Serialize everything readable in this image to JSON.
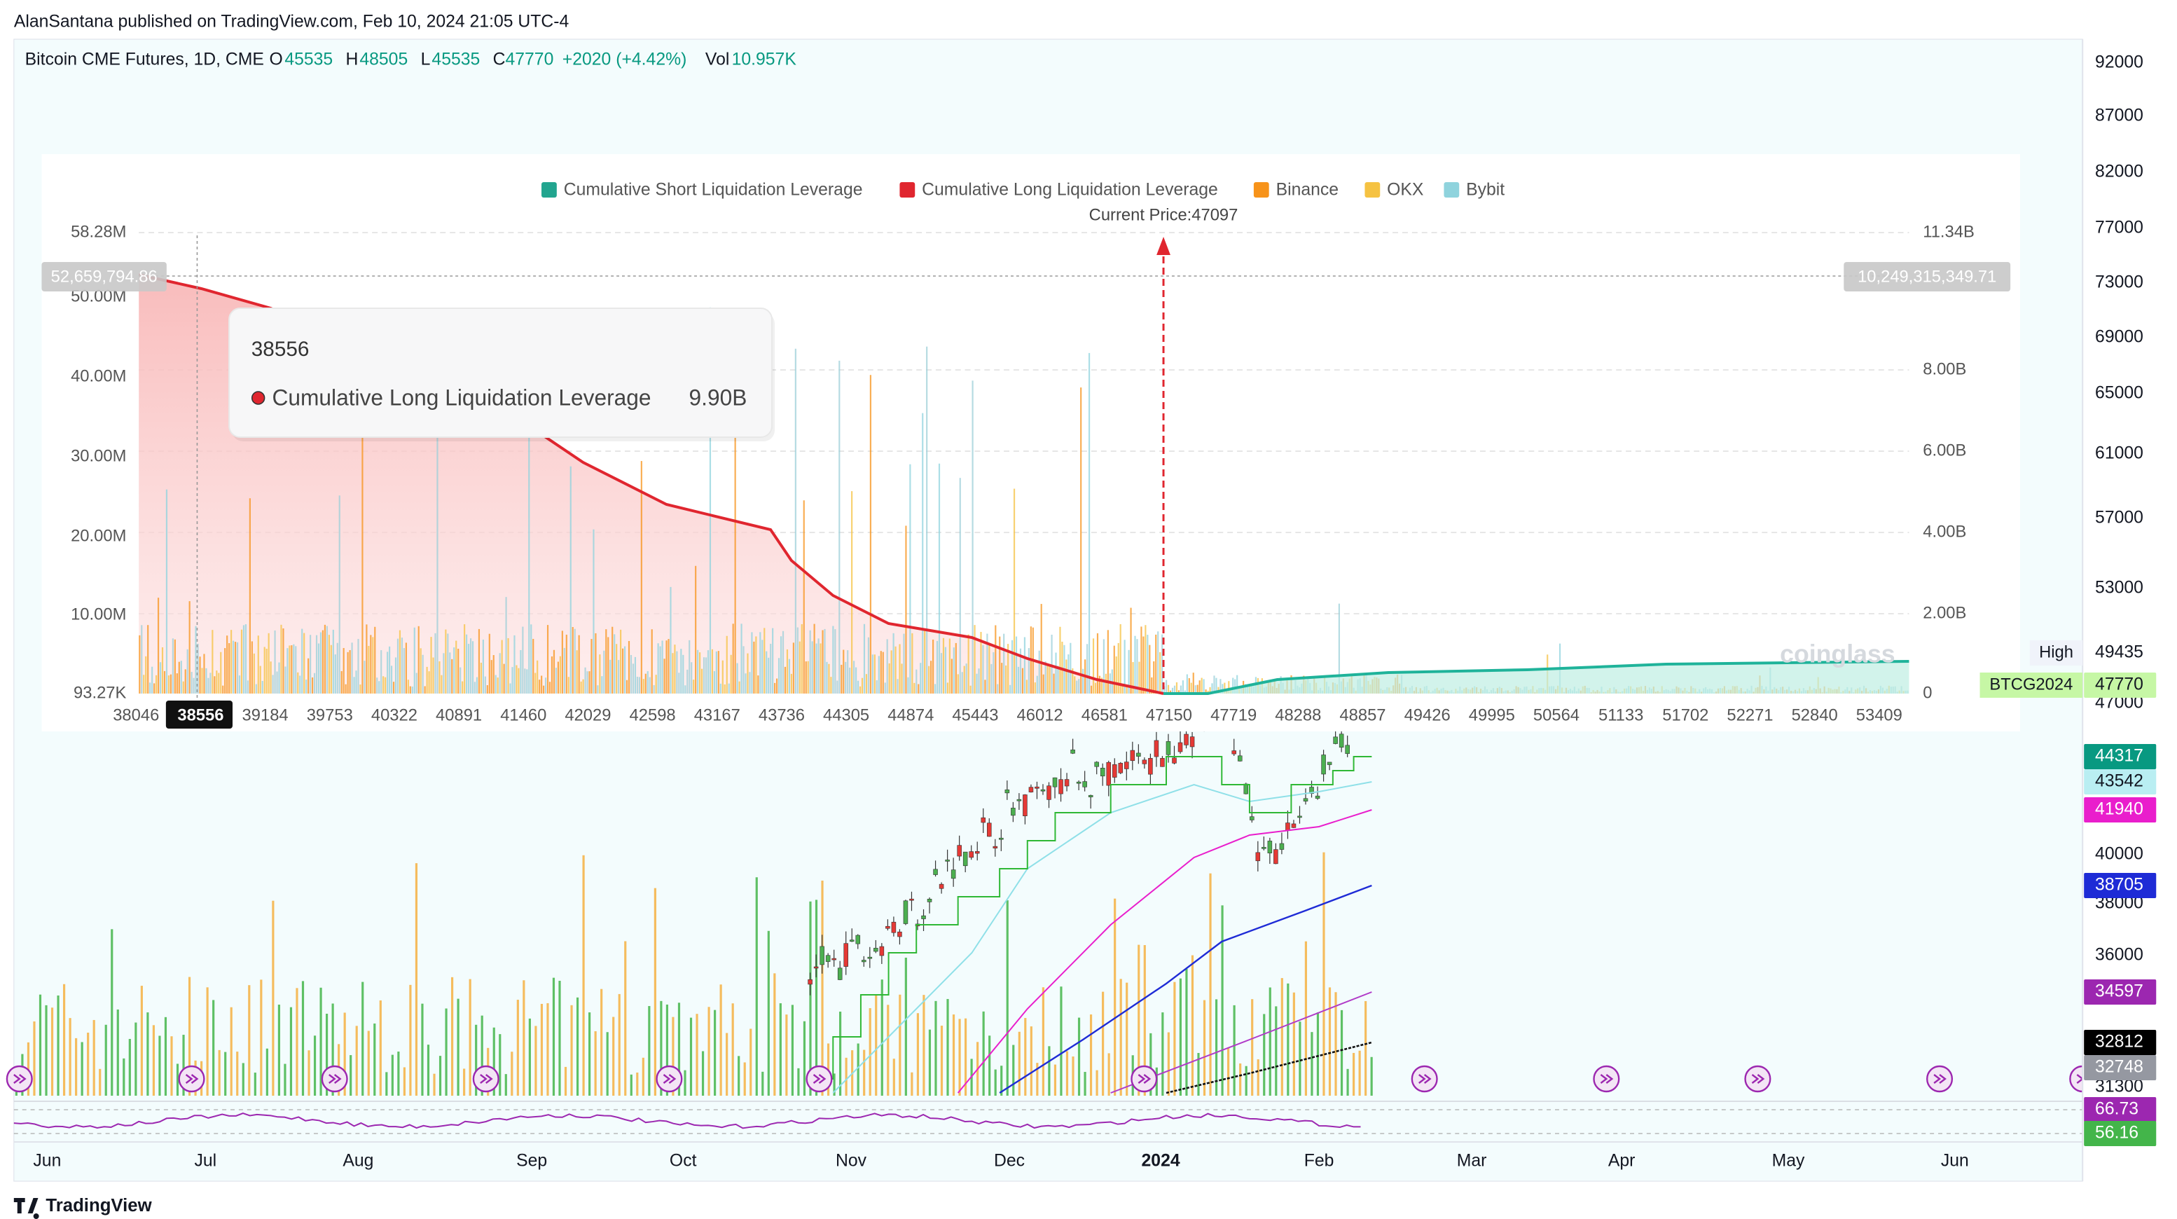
{
  "header": {
    "publisher": "AlanSantana published on TradingView.com, Feb 10, 2024 21:05 UTC-4"
  },
  "symbol": {
    "name": "Bitcoin CME Futures, 1D, CME",
    "open_label": "O",
    "open": 45535,
    "high_label": "H",
    "high": 48505,
    "low_label": "L",
    "low": 45535,
    "close_label": "C",
    "close": 47770,
    "change": "+2020 (+4.42%)",
    "volume_label": "Vol",
    "volume": "10.957K"
  },
  "price_axis": {
    "labels": [
      92000,
      87000,
      82000,
      77000,
      73000,
      69000,
      65000,
      61000,
      57000,
      53000,
      47000,
      40000,
      38000,
      36000,
      31300
    ]
  },
  "price_tags": [
    {
      "name": "High",
      "value": 49435
    },
    {
      "name": "BTCG2024",
      "value": 47770
    },
    {
      "value": 44317
    },
    {
      "value": 43542
    },
    {
      "value": 41940
    },
    {
      "value": 38705
    },
    {
      "value": 34597
    },
    {
      "value": 32812
    },
    {
      "value": 32748
    },
    {
      "value": 66.73
    },
    {
      "value": 56.16
    }
  ],
  "time_axis": {
    "labels": [
      "Jun",
      "Jul",
      "Aug",
      "Sep",
      "Oct",
      "Nov",
      "Dec",
      "2024",
      "Feb",
      "Mar",
      "Apr",
      "May",
      "Jun"
    ]
  },
  "overlay": {
    "legend": [
      "Cumulative Short Liquidation Leverage",
      "Cumulative Long Liquidation Leverage",
      "Binance",
      "OKX",
      "Bybit"
    ],
    "current_price": "Current Price:47097",
    "left_axis": [
      "58.28M",
      "50.00M",
      "40.00M",
      "30.00M",
      "20.00M",
      "10.00M",
      "93.27K"
    ],
    "right_axis": [
      "11.34B",
      "8.00B",
      "6.00B",
      "4.00B",
      "2.00B",
      0
    ],
    "x_axis": [
      38046,
      38556,
      39184,
      39753,
      40322,
      40891,
      41460,
      42029,
      42598,
      43167,
      43736,
      44305,
      44874,
      45443,
      46012,
      46581,
      47150,
      47719,
      48288,
      48857,
      49426,
      49995,
      50564,
      51133,
      51702,
      52271,
      52840,
      53409
    ],
    "crosshair_left": "52,659,794.86",
    "crosshair_right": "10,249,315,349.71",
    "tooltip": {
      "price": 38556,
      "series": "Cumulative Long Liquidation Leverage",
      "value": "9.90B"
    },
    "watermark": "coinglass"
  },
  "footer": {
    "brand": "TradingView"
  }
}
